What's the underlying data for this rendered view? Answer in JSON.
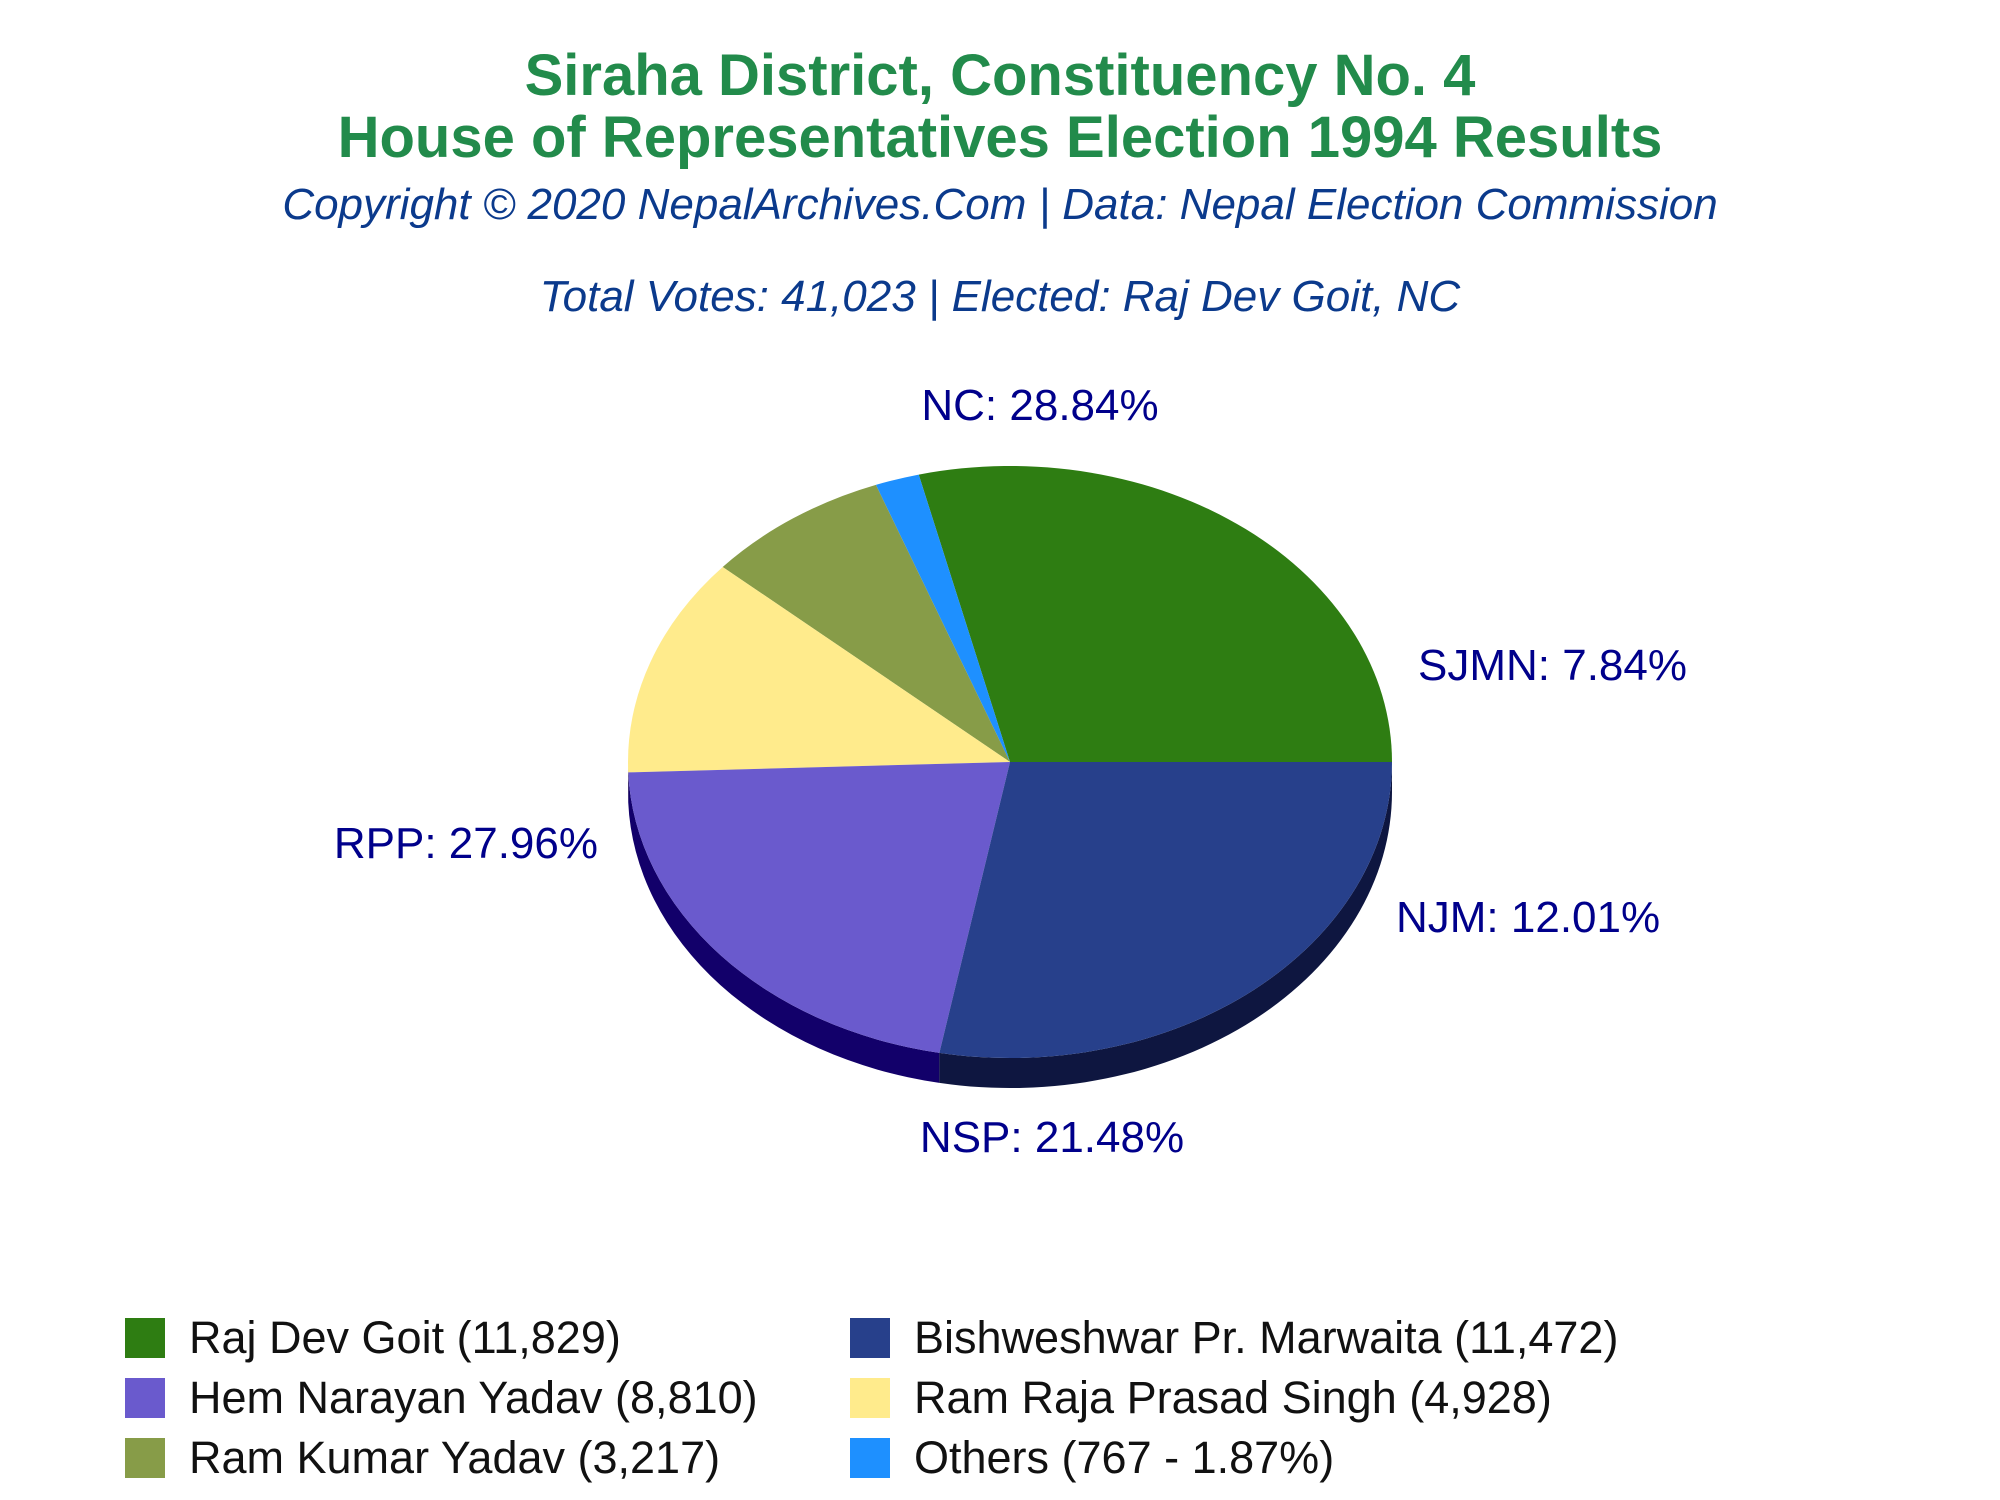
{
  "header": {
    "title_line1": "Siraha District, Constituency No. 4",
    "title_line2": "House of Representatives Election 1994 Results",
    "copyright": "Copyright © 2020 NepalArchives.Com | Data: Nepal Election Commission",
    "summary": "Total Votes: 41,023 | Elected: Raj Dev Goit, NC"
  },
  "chart_data": {
    "type": "pie",
    "slices": [
      {
        "label": "NC: 28.84%",
        "party": "NC",
        "percent": 28.84,
        "color": "#2E7D12",
        "side_color": "#1C4F0B"
      },
      {
        "label": "",
        "party": "Others",
        "percent": 1.87,
        "color": "#1E90FF",
        "side_color": "#135AA3"
      },
      {
        "label": "SJMN: 7.84%",
        "party": "SJMN",
        "percent": 7.84,
        "color": "#879C48",
        "side_color": "#5A6830"
      },
      {
        "label": "NJM: 12.01%",
        "party": "NJM",
        "percent": 12.01,
        "color": "#FFEB8C",
        "side_color": "#B09A32"
      },
      {
        "label": "NSP: 21.48%",
        "party": "NSP",
        "percent": 21.48,
        "color": "#6A5ACD",
        "side_color": "#12006A"
      },
      {
        "label": "RPP: 27.96%",
        "party": "RPP",
        "percent": 27.96,
        "color": "#27408B",
        "side_color": "#0E1640"
      }
    ],
    "label_color": "#00008B"
  },
  "legend": {
    "items": [
      {
        "text": "Raj Dev Goit (11,829)",
        "color": "#2E7D12"
      },
      {
        "text": "Bishweshwar Pr. Marwaita (11,472)",
        "color": "#27408B"
      },
      {
        "text": "Hem Narayan Yadav (8,810)",
        "color": "#6A5ACD"
      },
      {
        "text": "Ram Raja Prasad Singh (4,928)",
        "color": "#FFEB8C"
      },
      {
        "text": "Ram Kumar Yadav (3,217)",
        "color": "#879C48"
      },
      {
        "text": "Others (767 - 1.87%)",
        "color": "#1E90FF"
      }
    ]
  }
}
